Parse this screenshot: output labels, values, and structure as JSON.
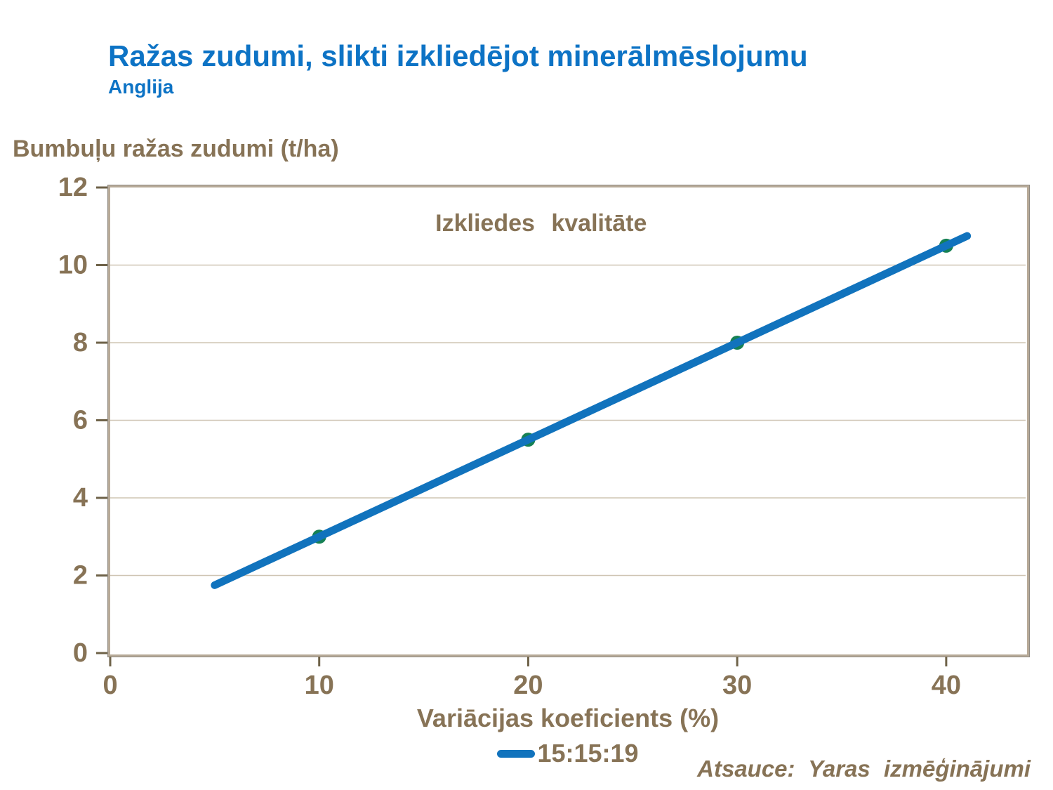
{
  "header": {
    "title": "Ražas zudumi, slikti izkliedējot minerālmēslojumu",
    "subtitle": "Anglija"
  },
  "footer": {
    "source": "Atsauce: Yaras izmēģinājumi"
  },
  "colors": {
    "title_blue": "#0d73c5",
    "text_brown": "#877356",
    "tick_brown": "#6e6248",
    "gridline_tan": "#cfc5b4",
    "frame_tan": "#b7aa98",
    "frame_gray": "#8f8a82",
    "line_blue": "#1173bd",
    "marker_green": "#168154",
    "background": "#ffffff"
  },
  "chart_data": {
    "type": "line",
    "annotation": "Izkliedes kvalitāte",
    "xlabel": "Variācijas koeficients (%)",
    "ylabel": "Bumbuļu ražas zudumi (t/ha)",
    "xlim": [
      0,
      43.8
    ],
    "ylim": [
      0,
      12
    ],
    "xticks": [
      0,
      10,
      20,
      30,
      40
    ],
    "yticks": [
      0,
      2,
      4,
      6,
      8,
      10,
      12
    ],
    "grid": "horizontal",
    "legend_position": "bottom-center",
    "series": [
      {
        "name": "15:15:19",
        "color": "#1173bd",
        "marker_color": "#168154",
        "line": {
          "x": [
            5,
            10,
            20,
            30,
            40,
            41
          ],
          "y": [
            1.75,
            3,
            5.5,
            8,
            10.5,
            10.75
          ]
        },
        "markers": {
          "x": [
            10,
            20,
            30,
            40
          ],
          "y": [
            3,
            5.5,
            8,
            10.5
          ]
        }
      }
    ]
  }
}
